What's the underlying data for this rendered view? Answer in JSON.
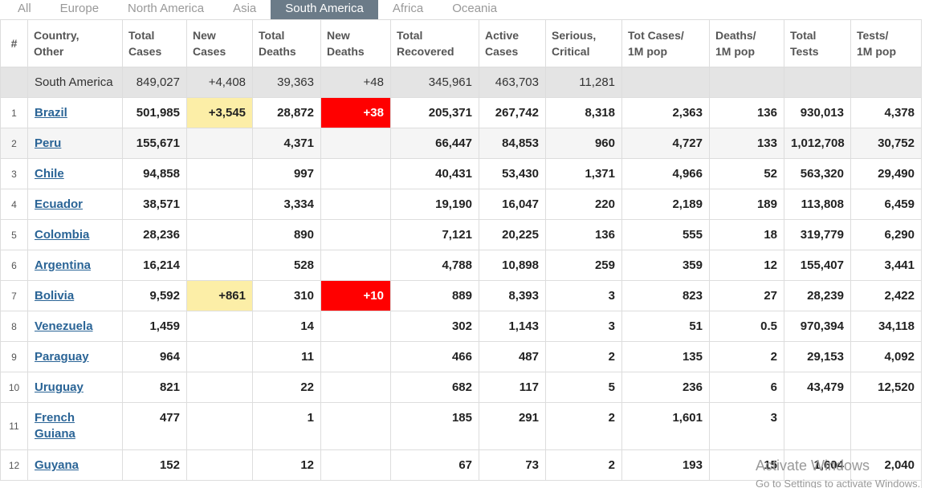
{
  "tabs": [
    "All",
    "Europe",
    "North America",
    "Asia",
    "South America",
    "Africa",
    "Oceania"
  ],
  "active_tab": 4,
  "table": {
    "headers": [
      [
        "#"
      ],
      [
        "Country,",
        "Other"
      ],
      [
        "Total",
        "Cases"
      ],
      [
        "New",
        "Cases"
      ],
      [
        "Total",
        "Deaths"
      ],
      [
        "New",
        "Deaths"
      ],
      [
        "Total",
        "Recovered"
      ],
      [
        "Active",
        "Cases"
      ],
      [
        "Serious,",
        "Critical"
      ],
      [
        "Tot Cases/",
        "1M pop"
      ],
      [
        "Deaths/",
        "1M pop"
      ],
      [
        "Total",
        "Tests"
      ],
      [
        "Tests/",
        "1M pop"
      ]
    ],
    "total_row": [
      null,
      "South America",
      "849,027",
      "+4,408",
      "39,363",
      "+48",
      "345,961",
      "463,703",
      "11,281",
      null,
      null,
      null,
      null
    ],
    "rows": [
      [
        "1",
        "Brazil",
        "501,985",
        "+3,545",
        "28,872",
        "+38",
        "205,371",
        "267,742",
        "8,318",
        "2,363",
        "136",
        "930,013",
        "4,378"
      ],
      [
        "2",
        "Peru",
        "155,671",
        null,
        "4,371",
        null,
        "66,447",
        "84,853",
        "960",
        "4,727",
        "133",
        "1,012,708",
        "30,752"
      ],
      [
        "3",
        "Chile",
        "94,858",
        null,
        "997",
        null,
        "40,431",
        "53,430",
        "1,371",
        "4,966",
        "52",
        "563,320",
        "29,490"
      ],
      [
        "4",
        "Ecuador",
        "38,571",
        null,
        "3,334",
        null,
        "19,190",
        "16,047",
        "220",
        "2,189",
        "189",
        "113,808",
        "6,459"
      ],
      [
        "5",
        "Colombia",
        "28,236",
        null,
        "890",
        null,
        "7,121",
        "20,225",
        "136",
        "555",
        "18",
        "319,779",
        "6,290"
      ],
      [
        "6",
        "Argentina",
        "16,214",
        null,
        "528",
        null,
        "4,788",
        "10,898",
        "259",
        "359",
        "12",
        "155,407",
        "3,441"
      ],
      [
        "7",
        "Bolivia",
        "9,592",
        "+861",
        "310",
        "+10",
        "889",
        "8,393",
        "3",
        "823",
        "27",
        "28,239",
        "2,422"
      ],
      [
        "8",
        "Venezuela",
        "1,459",
        null,
        "14",
        null,
        "302",
        "1,143",
        "3",
        "51",
        "0.5",
        "970,394",
        "34,118"
      ],
      [
        "9",
        "Paraguay",
        "964",
        null,
        "11",
        null,
        "466",
        "487",
        "2",
        "135",
        "2",
        "29,153",
        "4,092"
      ],
      [
        "10",
        "Uruguay",
        "821",
        null,
        "22",
        null,
        "682",
        "117",
        "5",
        "236",
        "6",
        "43,479",
        "12,520"
      ],
      [
        "11",
        "French Guiana",
        "477",
        null,
        "1",
        null,
        "185",
        "291",
        "2",
        "1,601",
        "3",
        null,
        null
      ],
      [
        "12",
        "Guyana",
        "152",
        null,
        "12",
        null,
        "67",
        "73",
        "2",
        "193",
        "15",
        "1,604",
        "2,040"
      ]
    ]
  },
  "watermark": {
    "title": "Activate Windows",
    "subtitle": "Go to Settings to activate Windows."
  }
}
